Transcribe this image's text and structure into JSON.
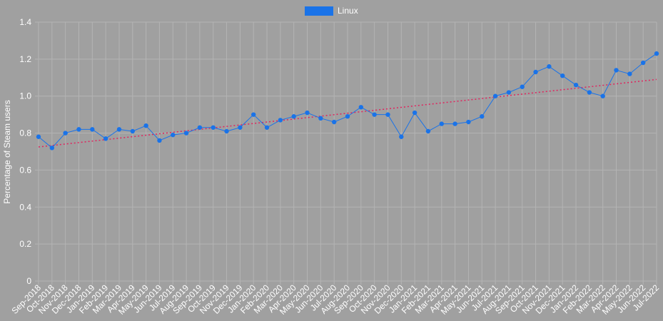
{
  "colors": {
    "background": "#a0a0a0",
    "grid": "#b4b4b4",
    "series": "#1a73e8",
    "trendline": "#e0245e",
    "text": "#ffffff"
  },
  "chart_data": {
    "type": "line",
    "ylabel": "Percentage of Steam users",
    "xlabel": "",
    "ylim": [
      0,
      1.4
    ],
    "yticks": [
      0,
      0.2,
      0.4,
      0.6,
      0.8,
      1.0,
      1.2,
      1.4
    ],
    "ytick_labels": [
      "0",
      "0.2",
      "0.4",
      "0.6",
      "0.8",
      "1.0",
      "1.2",
      "1.4"
    ],
    "grid": true,
    "legend_position": "top-center",
    "categories": [
      "Sep-2018",
      "Oct-2018",
      "Nov-2018",
      "Dec-2018",
      "Jan-2019",
      "Feb-2019",
      "Mar-2019",
      "Apr-2019",
      "May-2019",
      "Jun-2019",
      "Jul-2019",
      "Aug-2019",
      "Sep-2019",
      "Oct-2019",
      "Nov-2019",
      "Dec-2019",
      "Jan-2020",
      "Feb-2020",
      "Mar-2020",
      "Apr-2020",
      "May-2020",
      "Jun-2020",
      "Jul-2020",
      "Aug-2020",
      "Sep-2020",
      "Oct-2020",
      "Nov-2020",
      "Dec-2020",
      "Jan-2021",
      "Feb-2021",
      "Mar-2021",
      "Apr-2021",
      "May-2021",
      "Jun-2021",
      "Jul-2021",
      "Aug-2021",
      "Sep-2021",
      "Oct-2021",
      "Nov-2021",
      "Dec-2021",
      "Jan-2022",
      "Feb-2022",
      "Mar-2022",
      "Apr-2022",
      "May-2022",
      "Jun-2022",
      "Jul-2022"
    ],
    "series": [
      {
        "name": "Linux",
        "values": [
          0.78,
          0.72,
          0.8,
          0.82,
          0.82,
          0.77,
          0.82,
          0.81,
          0.84,
          0.76,
          0.79,
          0.8,
          0.83,
          0.83,
          0.81,
          0.83,
          0.9,
          0.83,
          0.87,
          0.89,
          0.91,
          0.88,
          0.86,
          0.89,
          0.94,
          0.9,
          0.9,
          0.78,
          0.91,
          0.81,
          0.85,
          0.85,
          0.86,
          0.89,
          1.0,
          1.02,
          1.05,
          1.13,
          1.16,
          1.11,
          1.06,
          1.02,
          1.0,
          1.14,
          1.12,
          1.18,
          1.23
        ]
      }
    ],
    "trendline": {
      "style": "dotted",
      "start_value": 0.725,
      "end_value": 1.09
    }
  }
}
